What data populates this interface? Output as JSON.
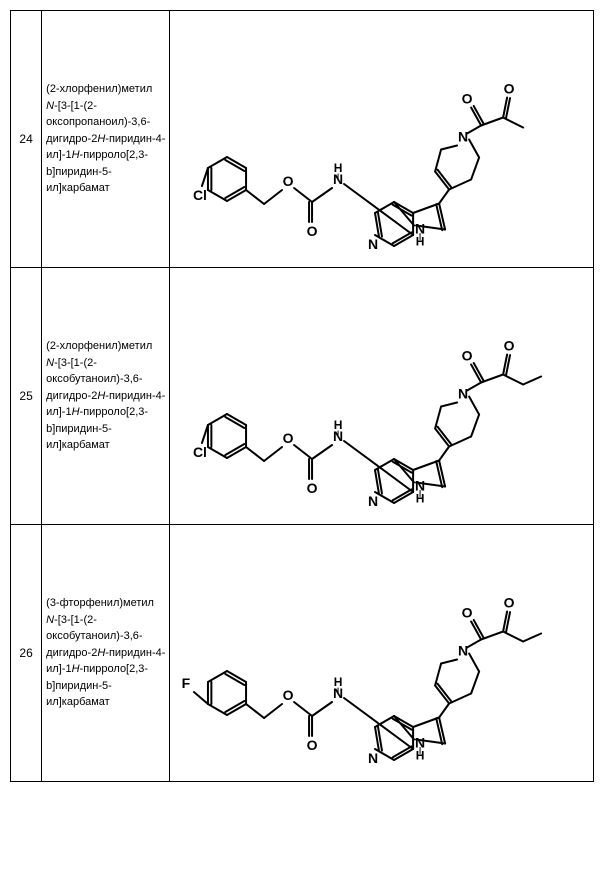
{
  "rows": [
    {
      "num": "24",
      "name_parts": [
        "(2-",
        "хлорфенил)м",
        "етил ",
        "N",
        "-[3-[1-",
        "(2-",
        "оксопропанои",
        "л)-3,6-",
        "дигидро-2",
        "H",
        "-",
        "пиридин-4-",
        "ил]-1",
        "H",
        "-",
        "пирроло[2,3-",
        "b]пиридин-5-",
        "ил]карбамат"
      ],
      "struct": {
        "halogen": "Cl",
        "halogen_pos": "ortho",
        "r_group": "CH3"
      }
    },
    {
      "num": "25",
      "name_parts": [
        "(2-",
        "хлорфенил)м",
        "етил ",
        "N",
        "-[3-[1-",
        "(2-",
        "оксобутаноил)",
        "-3,6-дигидро-",
        "2",
        "H",
        "-пиридин-4-",
        "ил]-1",
        "H",
        "-",
        "пирроло[2,3-",
        "b]пиридин-5-",
        "ил]карбамат"
      ],
      "struct": {
        "halogen": "Cl",
        "halogen_pos": "ortho",
        "r_group": "CH2CH3"
      }
    },
    {
      "num": "26",
      "name_parts": [
        "(3-",
        "фторфенил)м",
        "етил ",
        "N",
        "-[3-[1-",
        "(2-",
        "оксобутаноил)",
        "-3,6-дигидро-",
        "2",
        "H",
        "-пиридин-4-",
        "ил]-1",
        "H",
        "-",
        "пирроло[2,3-",
        "b]пиридин-5-",
        "ил]карбамат"
      ],
      "struct": {
        "halogen": "F",
        "halogen_pos": "meta",
        "r_group": "CH2CH3"
      }
    }
  ]
}
